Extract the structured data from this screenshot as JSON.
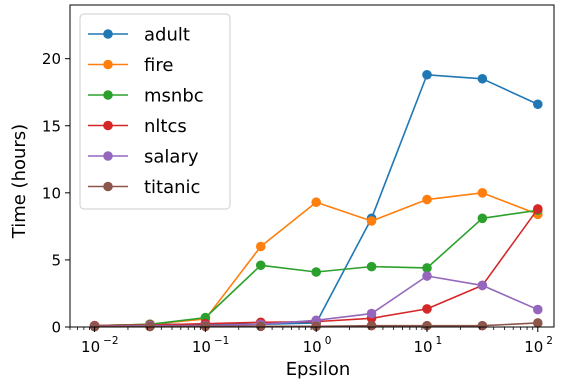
{
  "chart_data": {
    "type": "line",
    "title": "",
    "xlabel": "Epsilon",
    "ylabel": "Time (hours)",
    "xscale": "log",
    "xlim": [
      0.006,
      140
    ],
    "ylim": [
      0,
      24
    ],
    "x": [
      0.01,
      0.0316,
      0.1,
      0.316,
      1,
      3.16,
      10,
      31.6,
      100
    ],
    "x_ticks": [
      {
        "value": 0.01,
        "base": "10",
        "exp": "−2"
      },
      {
        "value": 0.1,
        "base": "10",
        "exp": "−1"
      },
      {
        "value": 1,
        "base": "10",
        "exp": "0"
      },
      {
        "value": 10,
        "base": "10",
        "exp": "1"
      },
      {
        "value": 100,
        "base": "10",
        "exp": "2"
      }
    ],
    "y_ticks": [
      0,
      5,
      10,
      15,
      20
    ],
    "grid": false,
    "legend_position": "top-left",
    "series": [
      {
        "name": "adult",
        "color": "#1f77b4",
        "values": [
          0.1,
          0.2,
          0.2,
          0.2,
          0.3,
          8.1,
          18.8,
          18.5,
          16.6
        ]
      },
      {
        "name": "fire",
        "color": "#ff7f0e",
        "values": [
          0.1,
          0.2,
          0.6,
          6.0,
          9.3,
          7.9,
          9.5,
          10.0,
          8.4
        ]
      },
      {
        "name": "msnbc",
        "color": "#2ca02c",
        "values": [
          0.1,
          0.2,
          0.7,
          4.6,
          4.1,
          4.5,
          4.4,
          8.1,
          8.7
        ]
      },
      {
        "name": "nltcs",
        "color": "#d62728",
        "values": [
          0.1,
          0.15,
          0.25,
          0.35,
          0.4,
          0.65,
          1.35,
          3.1,
          8.8
        ]
      },
      {
        "name": "salary",
        "color": "#9467bd",
        "values": [
          0.05,
          0.1,
          0.1,
          0.2,
          0.5,
          1.0,
          3.8,
          3.1,
          1.3
        ]
      },
      {
        "name": "titanic",
        "color": "#8c564b",
        "values": [
          0.02,
          0.03,
          0.05,
          0.05,
          0.05,
          0.1,
          0.1,
          0.1,
          0.3
        ]
      }
    ]
  }
}
